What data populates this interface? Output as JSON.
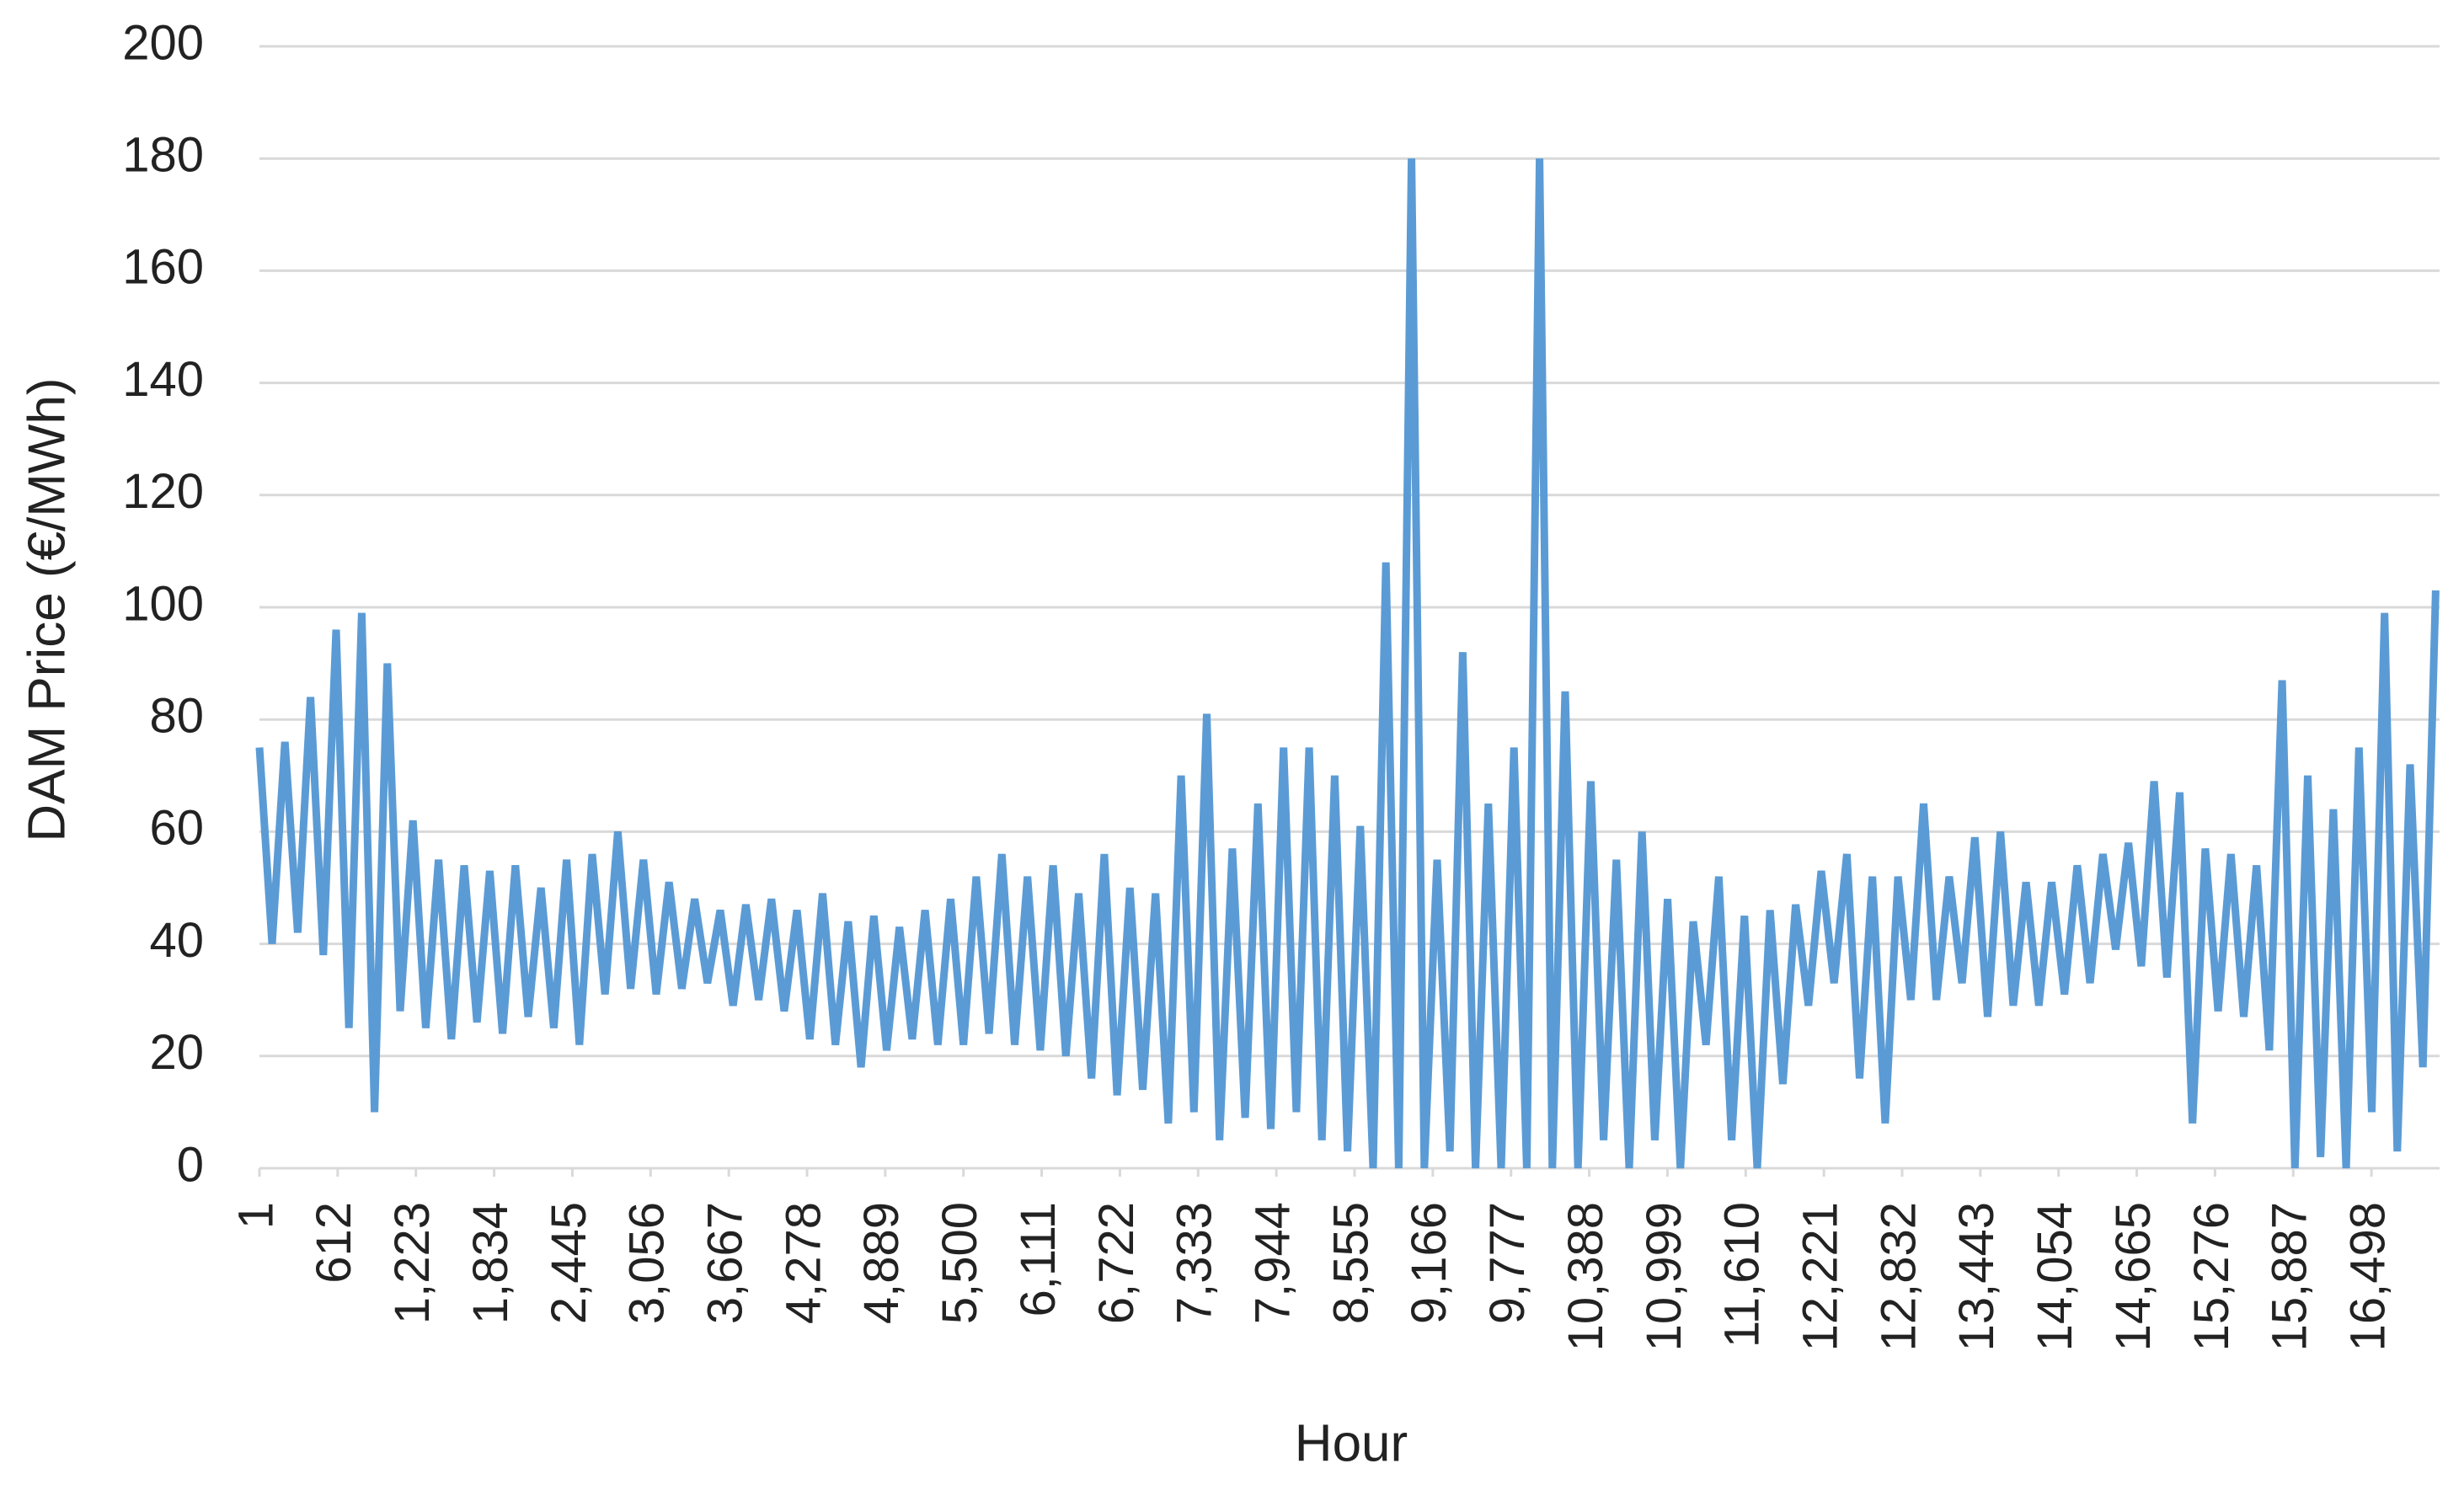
{
  "chart_data": {
    "type": "line",
    "x_label": "Hour",
    "y_label": "DAM Price (€/MWh)",
    "x": [
      1,
      100,
      200,
      300,
      400,
      500,
      600,
      700,
      800,
      900,
      1000,
      1100,
      1200,
      1300,
      1400,
      1500,
      1600,
      1700,
      1800,
      1900,
      2000,
      2100,
      2200,
      2300,
      2400,
      2500,
      2600,
      2700,
      2800,
      2900,
      3000,
      3100,
      3200,
      3300,
      3400,
      3500,
      3600,
      3700,
      3800,
      3900,
      4000,
      4100,
      4200,
      4300,
      4400,
      4500,
      4600,
      4700,
      4800,
      4900,
      5000,
      5100,
      5200,
      5300,
      5400,
      5500,
      5600,
      5700,
      5800,
      5900,
      6000,
      6100,
      6200,
      6300,
      6400,
      6500,
      6600,
      6700,
      6800,
      6900,
      7000,
      7100,
      7200,
      7300,
      7400,
      7500,
      7600,
      7700,
      7800,
      7900,
      8000,
      8100,
      8200,
      8300,
      8400,
      8500,
      8600,
      8700,
      8800,
      8900,
      9000,
      9100,
      9200,
      9300,
      9400,
      9500,
      9600,
      9700,
      9800,
      9900,
      10000,
      10100,
      10200,
      10300,
      10400,
      10500,
      10600,
      10700,
      10800,
      10900,
      11000,
      11100,
      11200,
      11300,
      11400,
      11500,
      11600,
      11700,
      11800,
      11900,
      12000,
      12100,
      12200,
      12300,
      12400,
      12500,
      12600,
      12700,
      12800,
      12900,
      13000,
      13100,
      13200,
      13300,
      13400,
      13500,
      13600,
      13700,
      13800,
      13900,
      14000,
      14100,
      14200,
      14300,
      14400,
      14500,
      14600,
      14700,
      14800,
      14900,
      15000,
      15100,
      15200,
      15300,
      15400,
      15500,
      15600,
      15700,
      15800,
      15900,
      16000,
      16100,
      16200,
      16300,
      16400,
      16500,
      16600,
      16700,
      16800,
      16900,
      17000
    ],
    "series": [
      {
        "name": "DAM Price",
        "color": "#5b9bd5",
        "values": [
          75,
          40,
          76,
          42,
          84,
          38,
          96,
          25,
          99,
          10,
          90,
          28,
          62,
          25,
          55,
          23,
          54,
          26,
          53,
          24,
          54,
          27,
          50,
          25,
          55,
          22,
          56,
          31,
          60,
          32,
          55,
          31,
          51,
          32,
          48,
          33,
          46,
          29,
          47,
          30,
          48,
          28,
          46,
          23,
          49,
          22,
          44,
          18,
          45,
          21,
          43,
          23,
          46,
          22,
          48,
          22,
          52,
          24,
          56,
          22,
          52,
          21,
          54,
          20,
          49,
          16,
          56,
          13,
          50,
          14,
          49,
          8,
          70,
          10,
          81,
          5,
          57,
          9,
          65,
          7,
          75,
          10,
          75,
          5,
          70,
          3,
          61,
          0,
          108,
          0,
          180,
          0,
          55,
          3,
          92,
          0,
          65,
          0,
          75,
          0,
          180,
          0,
          85,
          0,
          69,
          5,
          55,
          0,
          60,
          5,
          48,
          0,
          44,
          22,
          52,
          5,
          45,
          0,
          46,
          15,
          47,
          29,
          53,
          33,
          56,
          16,
          52,
          8,
          52,
          30,
          65,
          30,
          52,
          33,
          59,
          27,
          60,
          29,
          51,
          29,
          51,
          31,
          54,
          33,
          56,
          39,
          58,
          36,
          69,
          34,
          67,
          8,
          57,
          28,
          56,
          27,
          54,
          21,
          87,
          0,
          70,
          2,
          64,
          0,
          75,
          10,
          99,
          3,
          72,
          18,
          103
        ]
      }
    ],
    "xlim": [
      1,
      17030
    ],
    "xticks": [
      1,
      612,
      {
        "value": 1223,
        "label": "1,223"
      },
      {
        "value": 1834,
        "label": "1,834"
      },
      {
        "value": 2445,
        "label": "2,445"
      },
      {
        "value": 3056,
        "label": "3,056"
      },
      {
        "value": 3667,
        "label": "3,667"
      },
      {
        "value": 4278,
        "label": "4,278"
      },
      {
        "value": 4889,
        "label": "4,889"
      },
      {
        "value": 5500,
        "label": "5,500"
      },
      {
        "value": 6111,
        "label": "6,111"
      },
      {
        "value": 6722,
        "label": "6,722"
      },
      {
        "value": 7333,
        "label": "7,333"
      },
      {
        "value": 7944,
        "label": "7,944"
      },
      {
        "value": 8555,
        "label": "8,555"
      },
      {
        "value": 9166,
        "label": "9,166"
      },
      {
        "value": 9777,
        "label": "9,777"
      },
      {
        "value": 10388,
        "label": "10,388"
      },
      {
        "value": 10999,
        "label": "10,999"
      },
      {
        "value": 11610,
        "label": "11,610"
      },
      {
        "value": 12221,
        "label": "12,221"
      },
      {
        "value": 12832,
        "label": "12,832"
      },
      {
        "value": 13443,
        "label": "13,443"
      },
      {
        "value": 14054,
        "label": "14,054"
      },
      {
        "value": 14665,
        "label": "14,665"
      },
      {
        "value": 15276,
        "label": "15,276"
      },
      {
        "value": 15887,
        "label": "15,887"
      },
      {
        "value": 16498,
        "label": "16,498"
      }
    ],
    "ylim": [
      0,
      200
    ],
    "yticks": [
      0,
      20,
      40,
      60,
      80,
      100,
      120,
      140,
      160,
      180,
      200
    ],
    "grid": true
  }
}
